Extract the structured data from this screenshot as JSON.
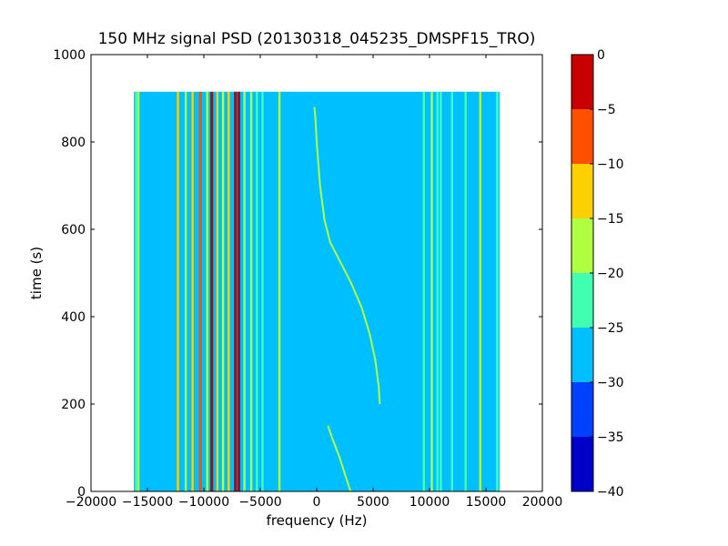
{
  "chart_data": {
    "type": "heatmap",
    "title": "150 MHz signal PSD (20130318_045235_DMSPF15_TRO)",
    "xlabel": "frequency (Hz)",
    "ylabel": "time (s)",
    "xlim": [
      -20000,
      20000
    ],
    "ylim": [
      0,
      1000
    ],
    "xticks": [
      -20000,
      -15000,
      -10000,
      -5000,
      0,
      5000,
      10000,
      15000,
      20000
    ],
    "yticks": [
      0,
      200,
      400,
      600,
      800,
      1000
    ],
    "grid": false,
    "data_extent": {
      "x": [
        -16200,
        16200
      ],
      "y": [
        0,
        915
      ]
    },
    "background_level_range": [
      -30,
      -25
    ],
    "colorbar": {
      "levels": [
        -40,
        -35,
        -30,
        -25,
        -20,
        -15,
        -10,
        -5,
        0
      ],
      "colors": [
        "#0000c8",
        "#0040ff",
        "#00bfff",
        "#40ffb0",
        "#b0ff40",
        "#ffd000",
        "#ff5000",
        "#c80000"
      ],
      "ticks": [
        0,
        -5,
        -10,
        -15,
        -20,
        -25,
        -30,
        -35,
        -40
      ]
    },
    "constant_lines": [
      {
        "freq": -16000,
        "level_range": [
          -25,
          -20
        ]
      },
      {
        "freq": -15800,
        "level_range": [
          -20,
          -15
        ]
      },
      {
        "freq": -12300,
        "level_range": [
          -15,
          -10
        ]
      },
      {
        "freq": -11600,
        "level_range": [
          -20,
          -15
        ]
      },
      {
        "freq": -11000,
        "level_range": [
          -15,
          -10
        ]
      },
      {
        "freq": -10300,
        "level_range": [
          -10,
          -5
        ]
      },
      {
        "freq": -9700,
        "level_range": [
          -20,
          -15
        ]
      },
      {
        "freq": -9300,
        "level_range": [
          -5,
          0
        ]
      },
      {
        "freq": -8800,
        "level_range": [
          -15,
          -10
        ]
      },
      {
        "freq": -8300,
        "level_range": [
          -20,
          -15
        ]
      },
      {
        "freq": -7800,
        "level_range": [
          -15,
          -10
        ]
      },
      {
        "freq": -7200,
        "level_range": [
          -5,
          0
        ]
      },
      {
        "freq": -6900,
        "level_range": [
          -5,
          0
        ]
      },
      {
        "freq": -6400,
        "level_range": [
          -20,
          -15
        ]
      },
      {
        "freq": -5800,
        "level_range": [
          -20,
          -15
        ]
      },
      {
        "freq": -5300,
        "level_range": [
          -25,
          -20
        ]
      },
      {
        "freq": -4800,
        "level_range": [
          -25,
          -20
        ]
      },
      {
        "freq": -3300,
        "level_range": [
          -20,
          -15
        ]
      },
      {
        "freq": 9500,
        "level_range": [
          -25,
          -20
        ]
      },
      {
        "freq": 10200,
        "level_range": [
          -20,
          -15
        ]
      },
      {
        "freq": 10700,
        "level_range": [
          -25,
          -20
        ]
      },
      {
        "freq": 11000,
        "level_range": [
          -25,
          -20
        ]
      },
      {
        "freq": 12000,
        "level_range": [
          -25,
          -20
        ]
      },
      {
        "freq": 13200,
        "level_range": [
          -25,
          -20
        ]
      },
      {
        "freq": 14500,
        "level_range": [
          -20,
          -15
        ]
      },
      {
        "freq": 16000,
        "level_range": [
          -25,
          -20
        ]
      }
    ],
    "drifting_traces": [
      {
        "level_range": [
          -20,
          -15
        ],
        "points": [
          [
            -200,
            880
          ],
          [
            -100,
            850
          ],
          [
            0,
            800
          ],
          [
            300,
            700
          ],
          [
            700,
            620
          ],
          [
            1200,
            570
          ],
          [
            2000,
            530
          ],
          [
            3000,
            480
          ],
          [
            4000,
            420
          ],
          [
            4700,
            360
          ],
          [
            5200,
            300
          ],
          [
            5500,
            240
          ],
          [
            5600,
            200
          ]
        ]
      },
      {
        "level_range": [
          -20,
          -15
        ],
        "points": [
          [
            1000,
            150
          ],
          [
            1400,
            120
          ],
          [
            2000,
            80
          ],
          [
            2500,
            40
          ],
          [
            3000,
            0
          ]
        ]
      }
    ]
  }
}
